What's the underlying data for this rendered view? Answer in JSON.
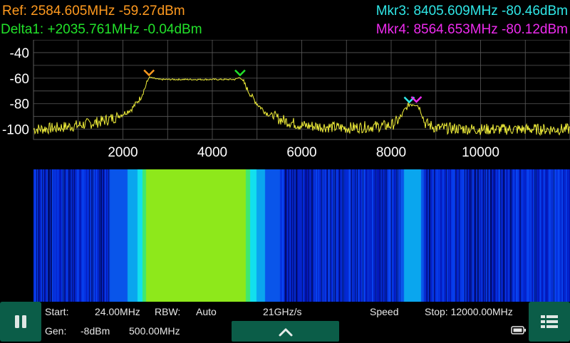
{
  "markers": {
    "ref": "Ref: 2584.605MHz -59.27dBm",
    "delta1": "Delta1: +2035.761MHz -0.04dBm",
    "mkr3": "Mkr3: 8405.609MHz -80.46dBm",
    "mkr4": "Mkr4: 8564.653MHz -80.12dBm"
  },
  "chart_data": {
    "type": "line",
    "x_ticks": [
      2000,
      4000,
      6000,
      8000,
      10000
    ],
    "y_ticks": [
      -40,
      -60,
      -80,
      -100
    ],
    "xlim": [
      0,
      12000
    ],
    "ylim": [
      -108,
      -30
    ],
    "grid": true,
    "series": [
      {
        "x": [
          0,
          500,
          1000,
          1500,
          1800,
          2000,
          2200,
          2400,
          2500,
          2584.6,
          2800,
          3500,
          4000,
          4500,
          4620.4,
          4700,
          4800,
          5000,
          5200,
          5500,
          6000,
          7000,
          8000,
          8200,
          8300,
          8405.6,
          8500,
          8564.7,
          8650,
          8750,
          9000,
          10000,
          11000,
          12000
        ],
        "y": [
          -100,
          -99,
          -97,
          -94,
          -91,
          -88,
          -84,
          -75,
          -67,
          -59.3,
          -61,
          -61,
          -61,
          -61,
          -59.3,
          -63,
          -70,
          -80,
          -87,
          -92,
          -97,
          -99,
          -97,
          -92,
          -85,
          -80.5,
          -80,
          -80.1,
          -84,
          -95,
          -99,
          -100,
          -100,
          -100
        ]
      }
    ],
    "markers": [
      {
        "label": "Ref",
        "x": 2584.605,
        "y": -59.27,
        "color": "#ff9a1f"
      },
      {
        "label": "Delta1",
        "x": 4620.366,
        "y": -59.31,
        "color": "#22e22a"
      },
      {
        "label": "Mkr3",
        "x": 8405.609,
        "y": -80.46,
        "color": "#2fe6e6"
      },
      {
        "label": "Mkr4",
        "x": 8564.653,
        "y": -80.12,
        "color": "#ee2bee"
      }
    ]
  },
  "status": {
    "start_label": "Start:",
    "start_value": "24.00MHz",
    "rbw_label": "RBW:",
    "rbw_value": "Auto",
    "rate": "21GHz/s",
    "speed_label": "Speed",
    "stop": "Stop: 12000.00MHz",
    "gen_label": "Gen:",
    "gen_level": "-8dBm",
    "gen_freq": "500.00MHz"
  },
  "icons": {
    "pause": "pause-icon",
    "up": "chevron-up-icon",
    "menu": "menu-list-icon",
    "battery": "battery-icon"
  },
  "colors": {
    "trace": "#f2f03a",
    "grid": "#5a5a5a",
    "button": "#0b5d48"
  }
}
